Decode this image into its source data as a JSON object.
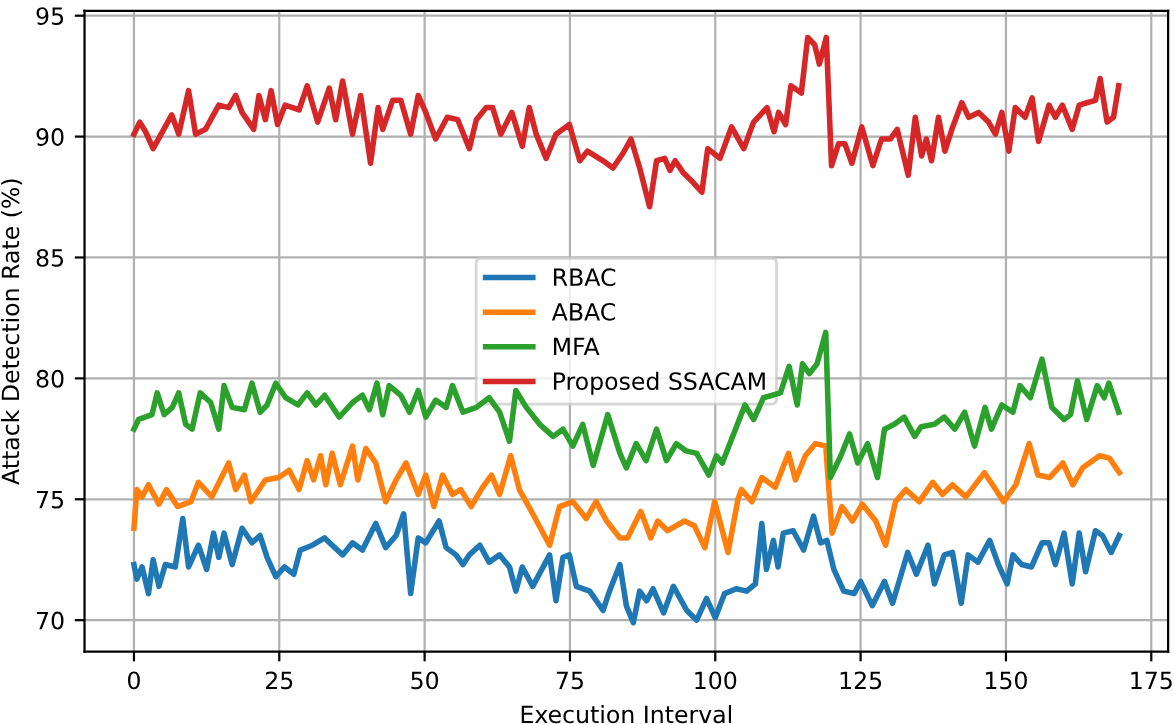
{
  "chart_data": {
    "type": "line",
    "xlabel": "Execution Interval",
    "ylabel": "Attack Detection Rate (%)",
    "xlim": [
      -8.5,
      177.9
    ],
    "ylim": [
      68.7,
      95.2
    ],
    "xticks": [
      0,
      25,
      50,
      75,
      100,
      125,
      150,
      175
    ],
    "yticks": [
      70,
      75,
      80,
      85,
      90,
      95
    ],
    "grid": true,
    "legend": "center",
    "line_style": "solid",
    "marker": "none",
    "series": [
      {
        "name": "RBAC",
        "color": "#1f77b4",
        "x": [
          0,
          0.5,
          1.4,
          2.5,
          3.3,
          4.3,
          5.4,
          7.1,
          8.4,
          9.4,
          11.1,
          12.5,
          13.7,
          14.6,
          15.5,
          16.9,
          18.6,
          20.3,
          21.7,
          22.9,
          24.4,
          25.9,
          27.5,
          28.6,
          30.7,
          32.8,
          34.1,
          35.9,
          37.6,
          39.3,
          41.6,
          43.3,
          45.1,
          46.4,
          47.6,
          48.9,
          50.2,
          52.5,
          53.7,
          55.4,
          56.6,
          57.7,
          59.5,
          61.1,
          62.9,
          64.6,
          65.7,
          66.8,
          68.6,
          71.5,
          72.6,
          73.8,
          74.9,
          76.1,
          78.4,
          80.7,
          81.8,
          83.6,
          84.7,
          85.9,
          87,
          88.2,
          89.3,
          91.1,
          92.8,
          95.1,
          96.8,
          98.5,
          100,
          101.6,
          103.6,
          105.4,
          106.9,
          108,
          108.8,
          110,
          110.8,
          111.7,
          113.4,
          115.2,
          116.9,
          118.1,
          119.2,
          120.4,
          122.1,
          123.9,
          125,
          127,
          129.1,
          130.5,
          133.1,
          134.6,
          136.6,
          137.7,
          139.4,
          140.8,
          142.3,
          143.5,
          145.2,
          147.2,
          148.7,
          150.2,
          151.2,
          152.7,
          154.4,
          156.2,
          157.4,
          158.5,
          160,
          161.4,
          162.6,
          163.7,
          165.4,
          166.6,
          168.1,
          169.5
        ],
        "values": [
          72.3,
          71.7,
          72.2,
          71.1,
          72.5,
          71.4,
          72.3,
          72.2,
          74.2,
          72.2,
          73.1,
          72.1,
          73.6,
          72.6,
          73.6,
          72.3,
          73.8,
          73.2,
          73.5,
          72.6,
          71.8,
          72.2,
          71.9,
          72.9,
          73.1,
          73.4,
          73.1,
          72.7,
          73.2,
          72.9,
          74,
          73,
          73.5,
          74.4,
          71.1,
          73.4,
          73.2,
          74.1,
          73,
          72.7,
          72.3,
          72.7,
          73.1,
          72.4,
          72.7,
          72.2,
          71.2,
          72.2,
          71.4,
          72.7,
          70.8,
          72.6,
          72.7,
          71.4,
          71.2,
          70.4,
          71.2,
          72.3,
          70.6,
          69.9,
          71.2,
          70.8,
          71.3,
          70.3,
          71.4,
          70.4,
          70,
          70.9,
          70.1,
          71.1,
          71.3,
          71.2,
          71.5,
          74,
          72.1,
          73.3,
          72.2,
          73.6,
          73.7,
          72.9,
          74.3,
          73.2,
          73.3,
          72.1,
          71.2,
          71.1,
          71.6,
          70.6,
          71.6,
          70.7,
          72.8,
          71.9,
          73.1,
          71.5,
          72.7,
          72.8,
          70.7,
          72.7,
          72.4,
          73.3,
          72.3,
          71.5,
          72.7,
          72.3,
          72.2,
          73.2,
          73.2,
          72.3,
          73.6,
          71.5,
          73.6,
          72,
          73.7,
          73.5,
          72.8,
          73.5
        ]
      },
      {
        "name": "ABAC",
        "color": "#ff7f0e",
        "x": [
          0,
          0.5,
          1.4,
          2.5,
          4.3,
          5.6,
          7.5,
          9.8,
          11.1,
          13.4,
          16.3,
          17.5,
          19,
          20.1,
          22.6,
          24.9,
          26.7,
          28.4,
          29.8,
          30.9,
          32.1,
          33,
          34.1,
          35.5,
          37.6,
          38.5,
          39.9,
          41.6,
          43.3,
          45.1,
          46.8,
          48.9,
          50.2,
          51.6,
          53.1,
          54.8,
          56.2,
          58,
          60,
          61.5,
          62.9,
          64.8,
          66.3,
          68.6,
          71.5,
          73.2,
          75.5,
          77.8,
          79.5,
          81.3,
          83.6,
          84.9,
          87.2,
          88.9,
          90.1,
          91.8,
          94.7,
          96.4,
          98.2,
          99.9,
          102.2,
          103.9,
          104.5,
          106.3,
          108,
          110.3,
          112.6,
          113.8,
          115.5,
          117.2,
          119,
          120.1,
          121.8,
          123.6,
          125.3,
          127.6,
          129.3,
          131,
          132.8,
          135.1,
          137.4,
          139.1,
          140.8,
          143.1,
          146.3,
          147.7,
          149.6,
          151.7,
          154,
          155.5,
          157.5,
          159.8,
          161.5,
          163.2,
          166.1,
          167.8,
          169.5
        ],
        "values": [
          73.8,
          75.4,
          75.1,
          75.6,
          74.8,
          75.4,
          74.7,
          74.9,
          75.7,
          75.1,
          76.5,
          75.4,
          76,
          74.9,
          75.8,
          75.9,
          76.2,
          75.4,
          76.6,
          75.8,
          76.8,
          75.6,
          76.9,
          75.6,
          77.2,
          75.8,
          77.1,
          76.5,
          74.9,
          75.8,
          76.5,
          75.2,
          76,
          74.7,
          76,
          75.2,
          75.4,
          74.7,
          75.5,
          76,
          75.2,
          76.8,
          75.4,
          74.4,
          73.1,
          74.7,
          74.9,
          74.2,
          74.9,
          74.1,
          73.4,
          73.4,
          74.5,
          73.4,
          74.1,
          73.7,
          74.1,
          73.9,
          73,
          74.9,
          72.8,
          75,
          75.4,
          74.9,
          75.9,
          75.5,
          76.9,
          75.8,
          76.8,
          77.3,
          77.2,
          73.6,
          74.7,
          74.1,
          74.8,
          74.1,
          73.1,
          74.9,
          75.4,
          74.9,
          75.7,
          75.2,
          75.6,
          75.1,
          76.1,
          75.6,
          74.9,
          75.6,
          77.3,
          76,
          75.9,
          76.5,
          75.6,
          76.3,
          76.8,
          76.7,
          76.1
        ]
      },
      {
        "name": "MFA",
        "color": "#2ca02c",
        "x": [
          0,
          0.8,
          3.1,
          4,
          5.2,
          6.6,
          7.7,
          8.9,
          10,
          11.4,
          13.2,
          14.6,
          15.5,
          16.9,
          19,
          20.3,
          21.7,
          22.9,
          24.4,
          26.1,
          28.2,
          29.8,
          31.3,
          32.8,
          35.3,
          37.6,
          39.3,
          40.5,
          41.8,
          42.8,
          43.9,
          45.9,
          47.4,
          48.9,
          50.2,
          51.9,
          53.7,
          54.8,
          56.6,
          58.9,
          61.1,
          62.9,
          64.6,
          65.7,
          67.5,
          69.8,
          72.1,
          73.8,
          75.5,
          77.2,
          79,
          81.5,
          83.6,
          84.7,
          86.4,
          88.1,
          89.9,
          91.6,
          93.3,
          95,
          96.8,
          98.9,
          100.2,
          101.2,
          102.5,
          105.1,
          106.6,
          108.3,
          111.2,
          112.7,
          114.1,
          115,
          116.2,
          117.5,
          119,
          119.8,
          121.6,
          123.1,
          124.5,
          126.2,
          127.9,
          129.1,
          130.8,
          132.5,
          134.3,
          135.4,
          137.7,
          139.4,
          141.2,
          142.9,
          144.6,
          146.4,
          147.5,
          149.3,
          151.2,
          152.4,
          154.2,
          156.2,
          157.9,
          160,
          161.1,
          162.3,
          163.9,
          165.7,
          166.9,
          167.7,
          169.4
        ],
        "values": [
          77.9,
          78.3,
          78.5,
          79.4,
          78.5,
          78.8,
          79.4,
          78.1,
          77.9,
          79.4,
          79,
          77.9,
          79.7,
          78.8,
          78.7,
          79.8,
          78.6,
          78.9,
          79.8,
          79.2,
          78.9,
          79.4,
          78.9,
          79.3,
          78.4,
          79,
          79.3,
          78.7,
          79.8,
          78.5,
          79.7,
          79.3,
          78.6,
          79.5,
          78.4,
          79.1,
          78.8,
          79.7,
          78.6,
          78.8,
          79.2,
          78.6,
          77.4,
          79.5,
          78.8,
          78.1,
          77.6,
          77.9,
          77.2,
          78.1,
          76.4,
          78.5,
          76.9,
          76.3,
          77.3,
          76.6,
          77.9,
          76.6,
          77.3,
          77,
          76.9,
          76,
          76.8,
          76.5,
          77.3,
          78.9,
          78.3,
          79.2,
          79.4,
          80.5,
          78.9,
          80.6,
          80.2,
          80.6,
          81.9,
          75.9,
          76.8,
          77.7,
          76.5,
          77.3,
          75.9,
          77.9,
          78.1,
          78.4,
          77.6,
          78,
          78.1,
          78.4,
          77.9,
          78.6,
          77.2,
          78.8,
          77.9,
          78.9,
          78.6,
          79.7,
          79.2,
          80.8,
          78.8,
          78.3,
          78.5,
          79.9,
          78.3,
          79.7,
          79.2,
          79.8,
          78.6
        ]
      },
      {
        "name": "Proposed SSACAM",
        "color": "#d62728",
        "x": [
          0,
          1,
          2,
          3.3,
          6.5,
          7.7,
          9.4,
          10.6,
          12.3,
          14.6,
          16.3,
          17.5,
          18.6,
          20.6,
          21.5,
          22.6,
          23.6,
          24.7,
          26,
          28.4,
          29.8,
          31.6,
          33.6,
          34.7,
          35.9,
          37.6,
          39,
          40.7,
          42,
          42.8,
          44.5,
          45.9,
          47.6,
          48.9,
          50.2,
          51.9,
          53.9,
          55.7,
          57.7,
          58.9,
          60.6,
          61.7,
          63.1,
          65,
          66.8,
          68,
          69.2,
          70.9,
          72.6,
          74.9,
          76.7,
          78,
          80.7,
          82.4,
          84.1,
          85.5,
          87,
          88.7,
          89.9,
          91.3,
          92.2,
          93.1,
          94.5,
          96.2,
          97.7,
          98.7,
          100.8,
          102.8,
          104.9,
          106.6,
          108.9,
          110.1,
          110.9,
          112.1,
          113,
          114.8,
          115.9,
          117.1,
          117.9,
          119.1,
          120,
          121.2,
          122.3,
          123.5,
          125.2,
          127.1,
          128.6,
          130.1,
          131.3,
          133.2,
          134.4,
          135.5,
          136.3,
          137.2,
          138.4,
          139.5,
          140.7,
          142.4,
          143.6,
          145.3,
          147,
          148.2,
          149.3,
          150.5,
          151.6,
          153.3,
          154.5,
          155.6,
          157.4,
          158.5,
          159.7,
          161.4,
          162.6,
          163.9,
          165.4,
          166.2,
          167.4,
          168.5,
          169.4
        ],
        "values": [
          90.1,
          90.6,
          90.2,
          89.5,
          90.9,
          90.1,
          91.9,
          90.1,
          90.3,
          91.3,
          91.2,
          91.7,
          91,
          90.3,
          91.7,
          90.7,
          91.9,
          90.5,
          91.3,
          91.1,
          92.1,
          90.6,
          92,
          90.7,
          92.3,
          90.1,
          91.7,
          88.9,
          91.2,
          90.3,
          91.5,
          91.5,
          90.1,
          91.7,
          91,
          89.9,
          90.8,
          90.7,
          89.5,
          90.7,
          91.2,
          91.2,
          90.1,
          91,
          89.6,
          91.2,
          90.1,
          89.1,
          90.1,
          90.5,
          89,
          89.4,
          89,
          88.7,
          89.3,
          89.9,
          88.7,
          87.1,
          89,
          89.1,
          88.6,
          89,
          88.5,
          88.1,
          87.7,
          89.5,
          89.1,
          90.4,
          89.5,
          90.6,
          91.2,
          90.2,
          91,
          90.5,
          92.1,
          91.8,
          94.1,
          93.8,
          93,
          94.1,
          88.8,
          89.7,
          89.7,
          88.9,
          90.4,
          88.8,
          89.9,
          89.9,
          90.3,
          88.4,
          90.8,
          89.2,
          89.9,
          89,
          90.8,
          89.4,
          90.3,
          91.4,
          90.8,
          91,
          90.6,
          90.1,
          91,
          89.4,
          91.2,
          90.8,
          91.6,
          89.8,
          91.3,
          90.8,
          91.3,
          90.3,
          91.3,
          91.4,
          91.5,
          92.4,
          90.6,
          90.8,
          92.1
        ]
      }
    ]
  }
}
